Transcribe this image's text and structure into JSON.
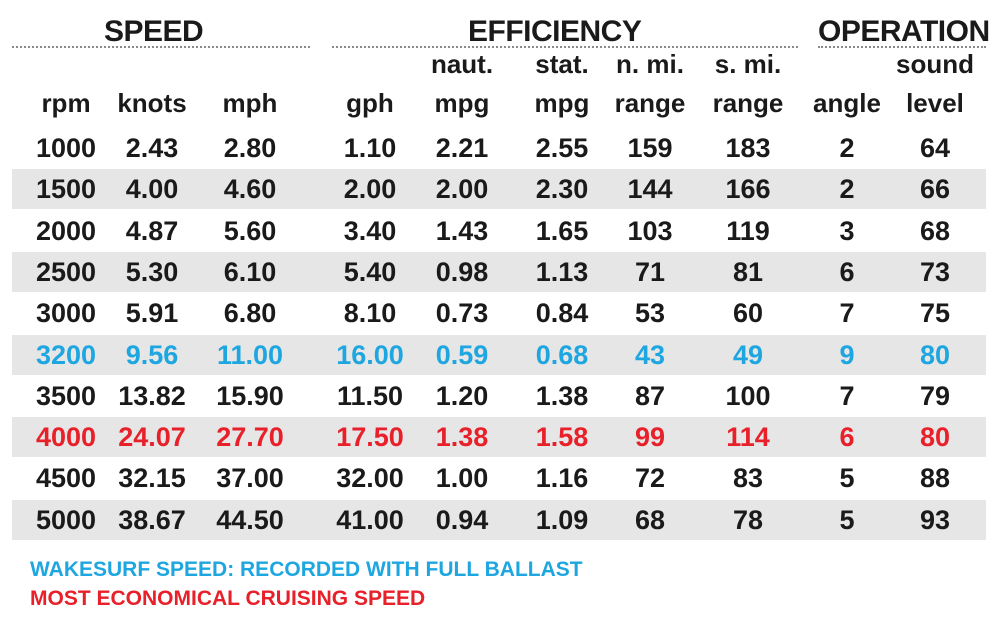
{
  "groups": {
    "speed": "SPEED",
    "efficiency": "EFFICIENCY",
    "operation": "OPERATION"
  },
  "columns": [
    {
      "top": "",
      "bottom": "rpm"
    },
    {
      "top": "",
      "bottom": "knots"
    },
    {
      "top": "",
      "bottom": "mph"
    },
    {
      "top": "",
      "bottom": "gph"
    },
    {
      "top": "naut.",
      "bottom": "mpg"
    },
    {
      "top": "stat.",
      "bottom": "mpg"
    },
    {
      "top": "n. mi.",
      "bottom": "range"
    },
    {
      "top": "s. mi.",
      "bottom": "range"
    },
    {
      "top": "",
      "bottom": "angle"
    },
    {
      "top": "sound",
      "bottom": "level"
    }
  ],
  "rows": [
    [
      "1000",
      "2.43",
      "2.80",
      "1.10",
      "2.21",
      "2.55",
      "159",
      "183",
      "2",
      "64"
    ],
    [
      "1500",
      "4.00",
      "4.60",
      "2.00",
      "2.00",
      "2.30",
      "144",
      "166",
      "2",
      "66"
    ],
    [
      "2000",
      "4.87",
      "5.60",
      "3.40",
      "1.43",
      "1.65",
      "103",
      "119",
      "3",
      "68"
    ],
    [
      "2500",
      "5.30",
      "6.10",
      "5.40",
      "0.98",
      "1.13",
      "71",
      "81",
      "6",
      "73"
    ],
    [
      "3000",
      "5.91",
      "6.80",
      "8.10",
      "0.73",
      "0.84",
      "53",
      "60",
      "7",
      "75"
    ],
    [
      "3200",
      "9.56",
      "11.00",
      "16.00",
      "0.59",
      "0.68",
      "43",
      "49",
      "9",
      "80"
    ],
    [
      "3500",
      "13.82",
      "15.90",
      "11.50",
      "1.20",
      "1.38",
      "87",
      "100",
      "7",
      "79"
    ],
    [
      "4000",
      "24.07",
      "27.70",
      "17.50",
      "1.38",
      "1.58",
      "99",
      "114",
      "6",
      "80"
    ],
    [
      "4500",
      "32.15",
      "37.00",
      "32.00",
      "1.00",
      "1.16",
      "72",
      "83",
      "5",
      "88"
    ],
    [
      "5000",
      "38.67",
      "44.50",
      "41.00",
      "0.94",
      "1.09",
      "68",
      "78",
      "5",
      "93"
    ]
  ],
  "highlights": {
    "wakesurf_row": 5,
    "economical_row": 7
  },
  "notes": {
    "wakesurf": "WAKESURF SPEED: RECORDED WITH FULL BALLAST",
    "economical": "MOST ECONOMICAL CRUISING SPEED"
  },
  "colors": {
    "wakesurf": "#1ea6e0",
    "economical": "#e8202a",
    "row_shade": "#e6e6e6"
  }
}
